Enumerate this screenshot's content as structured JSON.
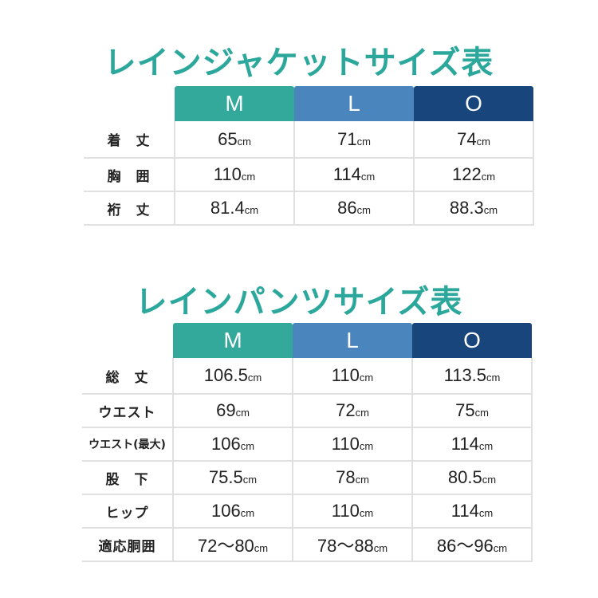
{
  "jacket": {
    "title": "レインジャケットサイズ表",
    "sizes": [
      "M",
      "L",
      "O"
    ],
    "unit": "cm",
    "rows": [
      {
        "label": "着　丈",
        "values": [
          "65",
          "71",
          "74"
        ]
      },
      {
        "label": "胸　囲",
        "values": [
          "110",
          "114",
          "122"
        ]
      },
      {
        "label": "裄　丈",
        "values": [
          "81.4",
          "86",
          "88.3"
        ]
      }
    ]
  },
  "pants": {
    "title": "レインパンツサイズ表",
    "sizes": [
      "M",
      "L",
      "O"
    ],
    "unit": "cm",
    "rows": [
      {
        "label": "総　丈",
        "values": [
          "106.5",
          "110",
          "113.5"
        ]
      },
      {
        "label": "ウエスト",
        "values": [
          "69",
          "72",
          "75"
        ]
      },
      {
        "label": "ウエスト(最大)",
        "values": [
          "106",
          "110",
          "114"
        ]
      },
      {
        "label": "股　下",
        "values": [
          "75.5",
          "78",
          "80.5"
        ]
      },
      {
        "label": "ヒップ",
        "values": [
          "106",
          "110",
          "114"
        ]
      },
      {
        "label": "適応胴囲",
        "values": [
          "72〜80",
          "78〜88",
          "86〜96"
        ]
      }
    ]
  },
  "colors": {
    "title": "#2ba89b",
    "M": "#33a99b",
    "L": "#4a86bd",
    "O": "#17457c"
  }
}
